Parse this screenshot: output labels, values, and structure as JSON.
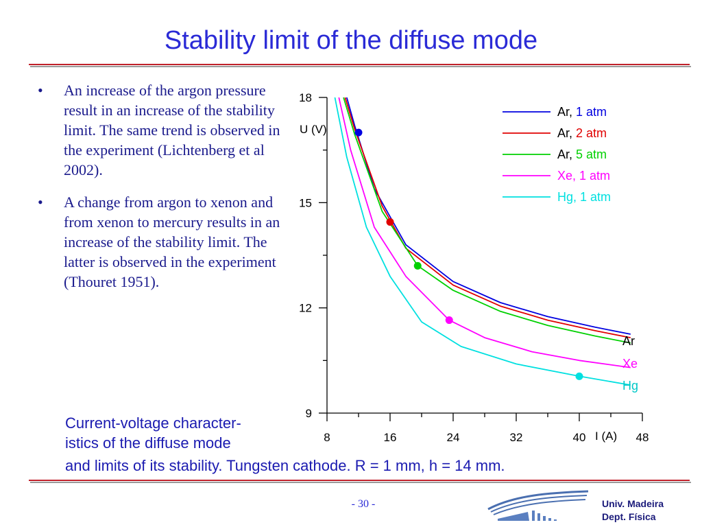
{
  "slide": {
    "title": "Stability limit of the diffuse mode",
    "bullets": [
      "An increase of the argon pressure result in an increase of the stability limit. The same trend is observed in the experiment (Lichtenberg et al 2002).",
      "A change from argon to xenon and from xenon to mercury results in an increase of the stability limit. The latter is observed in the experiment (Thouret 1951)."
    ],
    "bullet_symbol": "•",
    "caption_lines": [
      "Current-voltage character-",
      "istics of the diffuse mode",
      "and limits of its stability. Tungsten cathode. R = 1 mm, h = 14 mm."
    ],
    "page_number": "- 30 -",
    "institution_lines": [
      "Univ. Madeira",
      "Dept. Física"
    ]
  },
  "chart_data": {
    "type": "line",
    "xlabel": "I (A)",
    "ylabel": "U (V)",
    "xlim": [
      8,
      48
    ],
    "ylim": [
      9,
      18
    ],
    "x_ticks": [
      8,
      16,
      24,
      32,
      40,
      48
    ],
    "y_ticks": [
      9,
      12,
      15,
      18
    ],
    "legend_position": "top-right",
    "series": [
      {
        "name": "Ar, 1 atm",
        "gas": "Ar, ",
        "pressure": "1 atm",
        "color": "#0000e0",
        "x": [
          10.5,
          11.5,
          14,
          18,
          24,
          30,
          36,
          42,
          46.5
        ],
        "y": [
          18.0,
          17.2,
          15.4,
          13.8,
          12.75,
          12.15,
          11.75,
          11.45,
          11.25
        ],
        "limit_point": [
          12,
          17.0
        ]
      },
      {
        "name": "Ar, 2 atm",
        "gas": "Ar, ",
        "pressure": "2 atm",
        "color": "#e00000",
        "x": [
          10.3,
          11.5,
          15,
          18,
          24,
          30,
          36,
          42,
          46.5
        ],
        "y": [
          18.0,
          17.1,
          14.9,
          13.7,
          12.65,
          12.05,
          11.65,
          11.35,
          11.15
        ],
        "limit_point": [
          16,
          14.45
        ]
      },
      {
        "name": "Ar, 5 atm",
        "gas": "Ar, ",
        "pressure": "5 atm",
        "color": "#00d000",
        "x": [
          10.1,
          11.5,
          15,
          19.5,
          24,
          30,
          36,
          42,
          46.5
        ],
        "y": [
          18.0,
          16.95,
          14.75,
          13.2,
          12.5,
          11.9,
          11.5,
          11.2,
          11.0
        ],
        "limit_point": [
          19.5,
          13.2
        ]
      },
      {
        "name": "Xe, 1 atm",
        "gas": "Xe, ",
        "pressure": "1 atm",
        "color": "#ff00ff",
        "x": [
          9.5,
          11,
          14,
          18,
          23.5,
          28,
          34,
          40,
          46.5
        ],
        "y": [
          18.0,
          16.5,
          14.3,
          12.9,
          11.65,
          11.15,
          10.75,
          10.5,
          10.3
        ],
        "limit_point": [
          23.5,
          11.65
        ]
      },
      {
        "name": "Hg, 1 atm",
        "gas": "Hg, ",
        "pressure": "1 atm",
        "color": "#00e0e0",
        "x": [
          9,
          10.5,
          13,
          16,
          20,
          25,
          32,
          40,
          46.5
        ],
        "y": [
          18.0,
          16.3,
          14.3,
          12.9,
          11.6,
          10.9,
          10.4,
          10.05,
          9.8
        ],
        "limit_point": [
          40,
          10.05
        ]
      }
    ],
    "end_labels": [
      {
        "text": "Ar",
        "color": "#000000"
      },
      {
        "text": "Xe",
        "color": "#ff00ff"
      },
      {
        "text": "Hg",
        "color": "#00c8c8"
      }
    ]
  }
}
